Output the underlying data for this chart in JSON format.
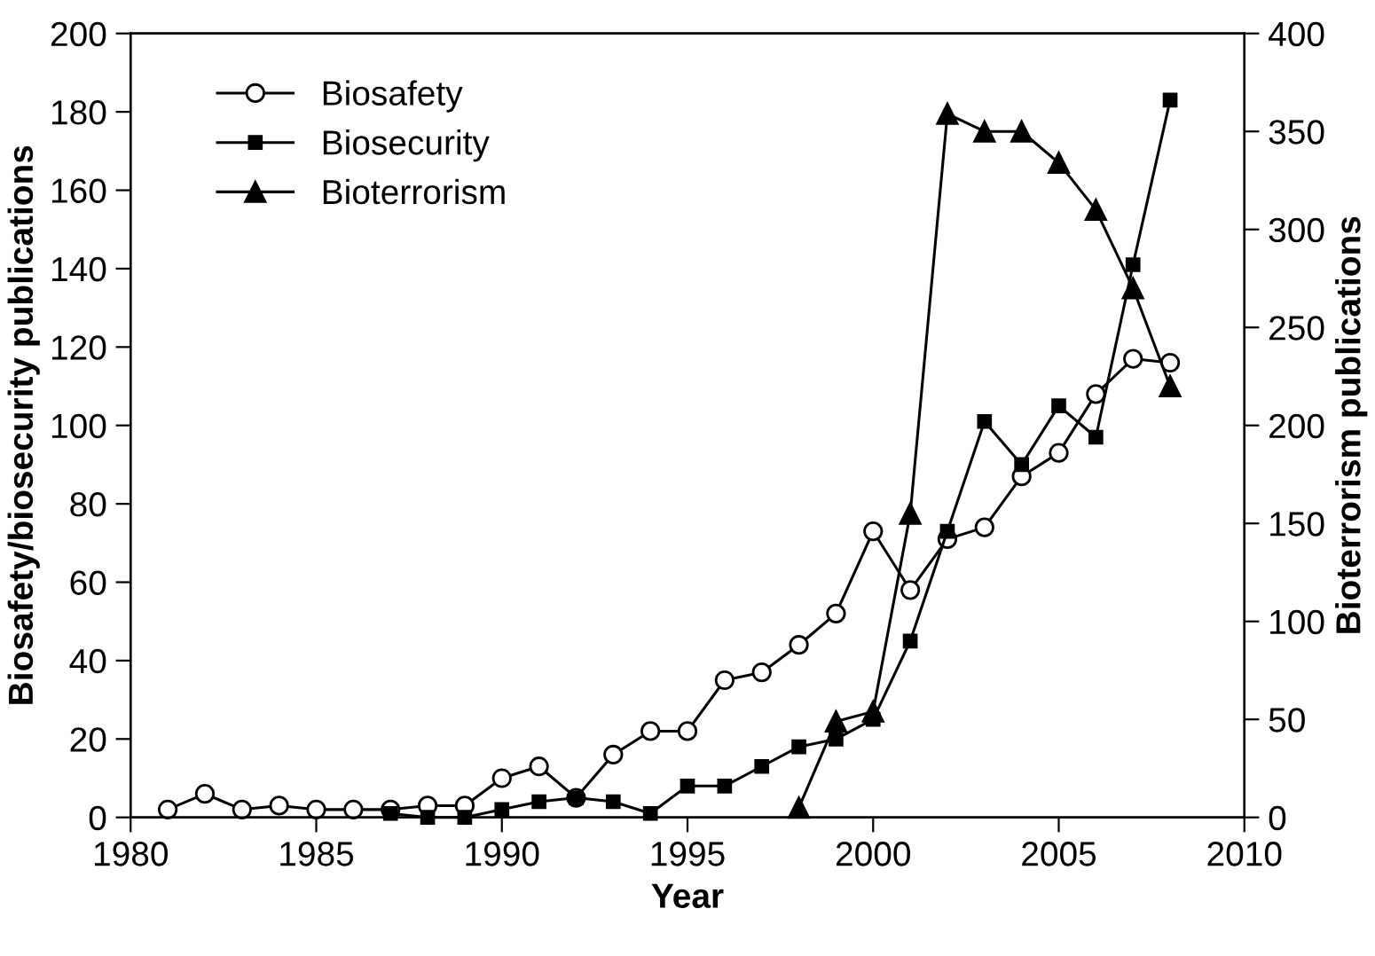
{
  "chart_data": {
    "type": "line",
    "xlabel": "Year",
    "ylabel": "Biosafety/biosecurity publications",
    "y2label": "Bioterrorism publications",
    "xlim": [
      1980,
      2010
    ],
    "xticks": [
      1980,
      1985,
      1990,
      1995,
      2000,
      2005,
      2010
    ],
    "ylim": [
      0,
      200
    ],
    "yticks": [
      0,
      20,
      40,
      60,
      80,
      100,
      120,
      140,
      160,
      180,
      200
    ],
    "y2lim": [
      0,
      400
    ],
    "y2ticks": [
      0,
      50,
      100,
      150,
      200,
      250,
      300,
      350,
      400
    ],
    "grid": false,
    "legend": "top left",
    "line_style": "solid",
    "series": [
      {
        "name": "Biosafety",
        "color": "#000000",
        "marker": "circle",
        "x": [
          1981,
          1982,
          1983,
          1984,
          1985,
          1986,
          1987,
          1988,
          1989,
          1990,
          1991,
          1992,
          1993,
          1994,
          1995,
          1996,
          1997,
          1998,
          1999,
          2000,
          2001,
          2002,
          2003,
          2004,
          2005,
          2006,
          2007,
          2008
        ],
        "values": [
          2,
          6,
          2,
          3,
          2,
          2,
          2,
          3,
          3,
          10,
          13,
          5,
          16,
          22,
          22,
          35,
          37,
          44,
          52,
          73,
          58,
          71,
          74,
          87,
          93,
          108,
          117,
          116
        ]
      },
      {
        "name": "Biosecurity",
        "color": "#000000",
        "marker": "square",
        "x": [
          1987,
          1988,
          1989,
          1990,
          1991,
          1992,
          1993,
          1994,
          1995,
          1996,
          1997,
          1998,
          1999,
          2000,
          2001,
          2002,
          2003,
          2004,
          2005,
          2006,
          2007,
          2008
        ],
        "values": [
          1,
          0,
          0,
          2,
          4,
          5,
          4,
          1,
          8,
          8,
          13,
          18,
          20,
          25,
          45,
          73,
          101,
          90,
          105,
          97,
          141,
          183
        ]
      },
      {
        "name": "Bioterrorism",
        "color": "#000000",
        "marker": "triangle",
        "axis": "y2",
        "x": [
          1998,
          1999,
          2000,
          2001,
          2002,
          2003,
          2004,
          2005,
          2006,
          2007,
          2008
        ],
        "values": [
          5,
          49,
          54,
          155,
          359,
          350,
          350,
          334,
          310,
          270,
          220
        ]
      }
    ]
  }
}
